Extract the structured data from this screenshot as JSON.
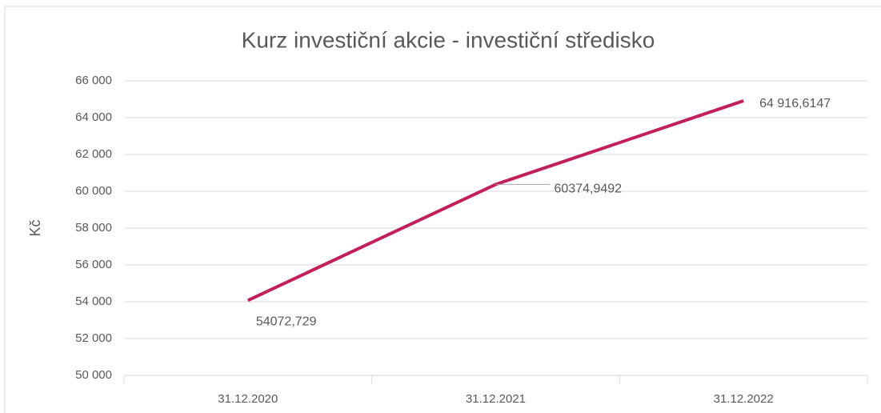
{
  "chart_data": {
    "type": "line",
    "title": "Kurz investiční akcie - investiční středisko",
    "y_label": "Kč",
    "categories": [
      "31.12.2020",
      "31.12.2021",
      "31.12.2022"
    ],
    "series": [
      {
        "name": "Kurz",
        "color": "#c21f5b",
        "values": [
          54072.729,
          60374.9492,
          64916.6147
        ],
        "value_labels": [
          "54072,729",
          "60374,9492",
          "64 916,6147"
        ]
      }
    ],
    "ylim": [
      50000,
      66000
    ],
    "yticks": [
      {
        "value": 50000,
        "label": "50 000"
      },
      {
        "value": 52000,
        "label": "52 000"
      },
      {
        "value": 54000,
        "label": "54 000"
      },
      {
        "value": 56000,
        "label": "56 000"
      },
      {
        "value": 58000,
        "label": "58 000"
      },
      {
        "value": 60000,
        "label": "60 000"
      },
      {
        "value": 62000,
        "label": "62 000"
      },
      {
        "value": 64000,
        "label": "64 000"
      },
      {
        "value": 66000,
        "label": "66 000"
      }
    ],
    "grid": true
  }
}
